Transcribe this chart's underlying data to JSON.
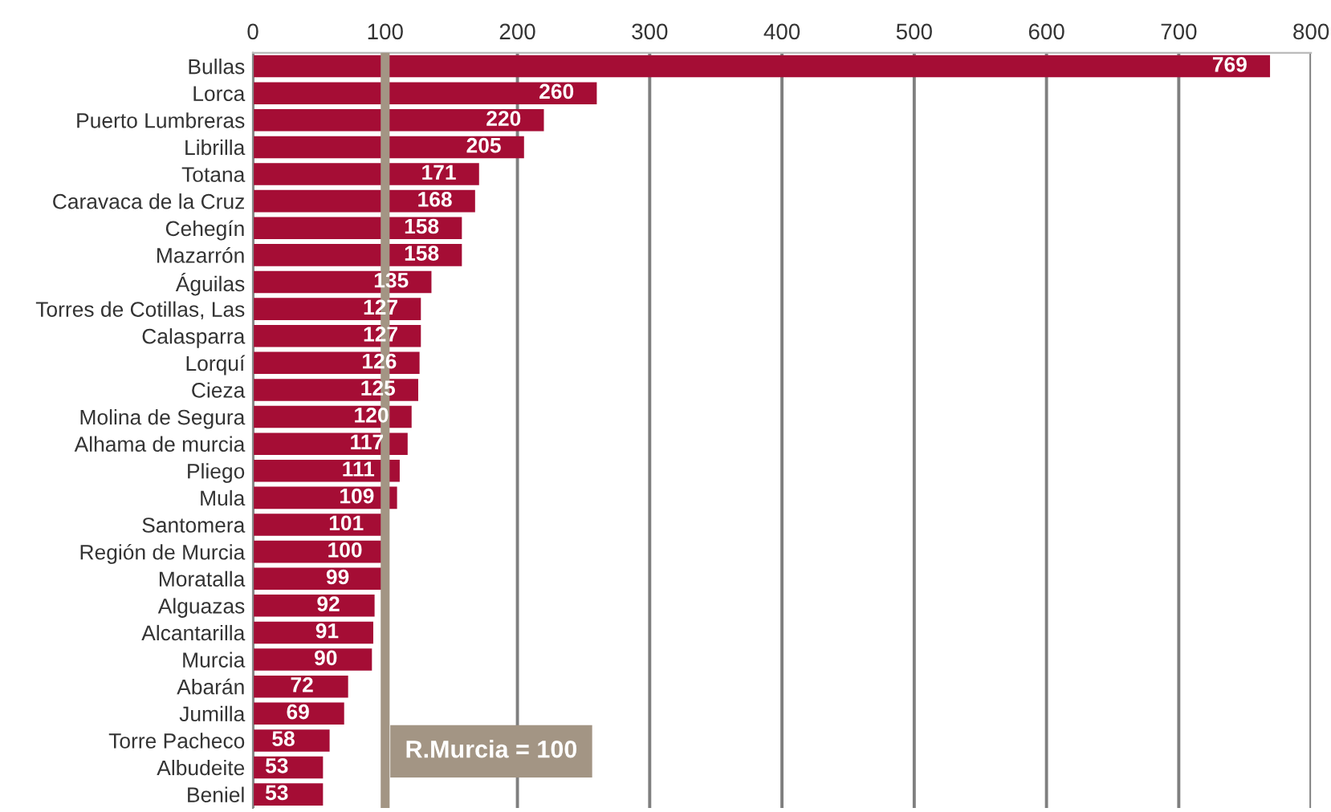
{
  "chart_data": {
    "type": "bar",
    "orientation": "horizontal",
    "categories": [
      "Bullas",
      "Lorca",
      "Puerto Lumbreras",
      "Librilla",
      "Totana",
      "Caravaca de la Cruz",
      "Cehegín",
      "Mazarrón",
      "Águilas",
      "Torres de Cotillas, Las",
      "Calasparra",
      "Lorquí",
      "Cieza",
      "Molina de Segura",
      "Alhama de murcia",
      "Pliego",
      "Mula",
      "Santomera",
      "Región de Murcia",
      "Moratalla",
      "Alguazas",
      "Alcantarilla",
      "Murcia",
      "Abarán",
      "Jumilla",
      "Torre Pacheco",
      "Albudeite",
      "Beniel"
    ],
    "values": [
      769,
      260,
      220,
      205,
      171,
      168,
      158,
      158,
      135,
      127,
      127,
      126,
      125,
      120,
      117,
      111,
      109,
      101,
      100,
      99,
      92,
      91,
      90,
      72,
      69,
      58,
      53,
      53
    ],
    "color": "#a50d35",
    "data_labels": true,
    "xlim": [
      0,
      800
    ],
    "xticks": [
      0,
      100,
      200,
      300,
      400,
      500,
      600,
      700,
      800
    ],
    "grid": "x",
    "ref_lines": [
      {
        "axis": "x",
        "value": 100,
        "label": "R.Murcia = 100",
        "color": "#a39584"
      }
    ]
  }
}
